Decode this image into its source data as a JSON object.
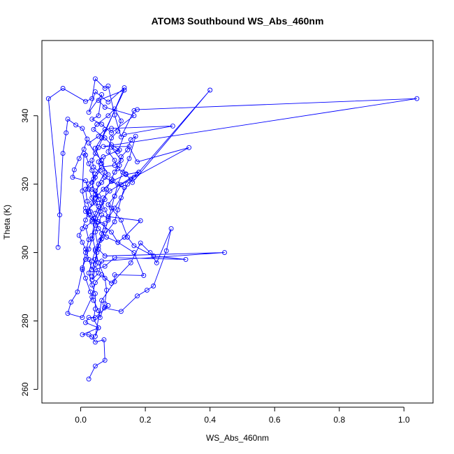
{
  "chart_data": {
    "type": "line",
    "title": "ATOM3 Southbound WS_Abs_460nm",
    "xlabel": "WS_Abs_460nm",
    "ylabel": "Theta (K)",
    "xlim": [
      -0.12,
      1.09
    ],
    "ylim": [
      256,
      362
    ],
    "xticks": [
      0.0,
      0.2,
      0.4,
      0.6,
      0.8,
      1.0
    ],
    "xtick_labels": [
      "0.0",
      "0.2",
      "0.4",
      "0.6",
      "0.8",
      "1.0"
    ],
    "yticks": [
      260,
      280,
      300,
      320,
      340
    ],
    "ytick_labels": [
      "260",
      "280",
      "300",
      "320",
      "340"
    ],
    "grid": false,
    "markers": "open-circle",
    "series": [
      {
        "color": "#0000ff",
        "points": [
          [
            0.025,
            263
          ],
          [
            0.045,
            266.8
          ],
          [
            0.075,
            268.5
          ],
          [
            0.072,
            274.5
          ],
          [
            0.045,
            273.8
          ],
          [
            0.035,
            275.3
          ],
          [
            0.025,
            276
          ],
          [
            0.005,
            276
          ],
          [
            0.055,
            278
          ],
          [
            0.015,
            279.5
          ],
          [
            0.025,
            281
          ],
          [
            0.045,
            281
          ],
          [
            0.085,
            284.5
          ],
          [
            0.073,
            283.8
          ],
          [
            0.125,
            282.8
          ],
          [
            0.175,
            287.3
          ],
          [
            0.205,
            289
          ],
          [
            0.225,
            290.2
          ],
          [
            0.265,
            300.5
          ],
          [
            0.28,
            307
          ],
          [
            0.235,
            297
          ],
          [
            0.215,
            300
          ],
          [
            0.185,
            302.8
          ],
          [
            0.155,
            297
          ],
          [
            0.095,
            291
          ],
          [
            0.065,
            293.5
          ],
          [
            0.045,
            291.2
          ],
          [
            0.035,
            287
          ],
          [
            0.005,
            281
          ],
          [
            -0.04,
            282.2
          ],
          [
            -0.03,
            285.5
          ],
          [
            -0.01,
            288.5
          ],
          [
            0.005,
            295
          ],
          [
            0.015,
            300
          ],
          [
            0.025,
            303.8
          ],
          [
            0.015,
            307.5
          ],
          [
            0.035,
            309
          ],
          [
            0.045,
            311.5
          ],
          [
            0.055,
            313.5
          ],
          [
            0.035,
            316
          ],
          [
            0.025,
            318.5
          ],
          [
            0.015,
            321
          ],
          [
            -0.025,
            322
          ],
          [
            -0.02,
            324.2
          ],
          [
            -0.005,
            327.5
          ],
          [
            0.01,
            330.2
          ],
          [
            0.02,
            333.2
          ],
          [
            0.005,
            336.3
          ],
          [
            -0.015,
            337.3
          ],
          [
            -0.04,
            339
          ],
          [
            -0.045,
            335
          ],
          [
            -0.055,
            329
          ],
          [
            -0.07,
            301.5
          ],
          [
            -0.065,
            311
          ],
          [
            -0.1,
            345
          ],
          [
            -0.055,
            348
          ],
          [
            0.015,
            344.2
          ],
          [
            0.035,
            345
          ],
          [
            0.045,
            350.8
          ],
          [
            0.075,
            348
          ],
          [
            0.085,
            348.7
          ],
          [
            0.105,
            340.2
          ],
          [
            0.125,
            333.8
          ],
          [
            0.165,
            341.5
          ],
          [
            0.175,
            341.8
          ],
          [
            1.04,
            345
          ],
          [
            0.07,
            331
          ],
          [
            0.15,
            331
          ],
          [
            0.175,
            326.5
          ],
          [
            0.335,
            330.7
          ],
          [
            0.155,
            321.5
          ],
          [
            0.125,
            319.8
          ],
          [
            0.105,
            316.5
          ],
          [
            0.085,
            314
          ],
          [
            0.125,
            309.5
          ],
          [
            0.145,
            304.5
          ],
          [
            0.165,
            302
          ],
          [
            0.225,
            299
          ],
          [
            0.325,
            298
          ],
          [
            0.105,
            298.5
          ],
          [
            0.075,
            296
          ],
          [
            0.045,
            295
          ],
          [
            0.035,
            292
          ],
          [
            0.055,
            294
          ],
          [
            0.065,
            297.5
          ],
          [
            0.445,
            300
          ],
          [
            0.075,
            299
          ],
          [
            0.055,
            301
          ],
          [
            0.045,
            306
          ],
          [
            0.065,
            311
          ],
          [
            0.085,
            310
          ],
          [
            0.105,
            313
          ],
          [
            0.125,
            316
          ],
          [
            0.145,
            320
          ],
          [
            0.165,
            322
          ],
          [
            0.18,
            323.5
          ],
          [
            0.14,
            322.8
          ],
          [
            0.1,
            321
          ],
          [
            0.07,
            318.5
          ],
          [
            0.045,
            316
          ],
          [
            0.055,
            320
          ],
          [
            0.075,
            323.5
          ],
          [
            0.065,
            327
          ],
          [
            0.045,
            329
          ],
          [
            0.025,
            332
          ],
          [
            0.055,
            334
          ],
          [
            0.075,
            336
          ],
          [
            0.095,
            336.3
          ],
          [
            0.285,
            337
          ],
          [
            0.135,
            334.5
          ],
          [
            0.115,
            329.5
          ],
          [
            0.095,
            330.8
          ],
          [
            0.125,
            327
          ],
          [
            0.105,
            325.5
          ],
          [
            0.065,
            325
          ],
          [
            0.045,
            323
          ],
          [
            0.035,
            320.5
          ],
          [
            0.045,
            317
          ],
          [
            0.035,
            314.5
          ],
          [
            0.025,
            312
          ],
          [
            0.015,
            309.5
          ],
          [
            0.005,
            307
          ],
          [
            -0.005,
            305
          ],
          [
            0.005,
            303
          ],
          [
            0.015,
            301
          ],
          [
            0.025,
            298
          ],
          [
            0.035,
            295
          ],
          [
            0.045,
            298
          ],
          [
            0.055,
            302
          ],
          [
            0.065,
            305.5
          ],
          [
            0.075,
            308.5
          ],
          [
            0.035,
            309.5
          ],
          [
            0.015,
            312
          ],
          [
            0.045,
            314.5
          ],
          [
            0.055,
            316.5
          ],
          [
            0.035,
            318.5
          ],
          [
            0.04,
            321.5
          ],
          [
            0.035,
            324
          ],
          [
            0.025,
            326
          ],
          [
            0.015,
            328.5
          ],
          [
            0.01,
            329
          ],
          [
            0.005,
            318
          ],
          [
            0.015,
            313
          ],
          [
            0.025,
            311
          ],
          [
            0.055,
            309
          ],
          [
            0.095,
            306
          ],
          [
            0.115,
            303
          ],
          [
            0.135,
            304.5
          ],
          [
            0.185,
            309.3
          ],
          [
            0.085,
            310.5
          ],
          [
            0.075,
            312.5
          ],
          [
            0.065,
            314.5
          ],
          [
            0.055,
            315.5
          ],
          [
            0.045,
            318
          ],
          [
            0.065,
            320.5
          ],
          [
            0.085,
            322.8
          ],
          [
            0.065,
            326
          ],
          [
            0.045,
            330.5
          ],
          [
            0.065,
            333.5
          ],
          [
            0.135,
            347.5
          ],
          [
            0.055,
            344.5
          ],
          [
            0.075,
            342.5
          ],
          [
            0.165,
            340
          ],
          [
            0.095,
            335
          ],
          [
            0.065,
            337.5
          ],
          [
            0.035,
            339
          ],
          [
            0.055,
            340
          ],
          [
            0.065,
            346.2
          ],
          [
            0.025,
            341
          ],
          [
            0.045,
            347
          ],
          [
            0.085,
            344
          ],
          [
            0.135,
            348.2
          ],
          [
            0.055,
            330.7
          ],
          [
            0.035,
            327
          ],
          [
            0.04,
            325
          ],
          [
            0.075,
            322
          ],
          [
            0.095,
            320.8
          ],
          [
            0.135,
            319
          ],
          [
            0.115,
            312.5
          ],
          [
            0.105,
            309
          ],
          [
            0.065,
            304
          ],
          [
            0.045,
            300.5
          ],
          [
            0.035,
            297.5
          ],
          [
            0.025,
            294
          ],
          [
            0.035,
            290.5
          ],
          [
            0.045,
            288
          ],
          [
            0.045,
            283.5
          ],
          [
            0.04,
            280.5
          ],
          [
            0.055,
            278
          ],
          [
            0.045,
            275.5
          ],
          [
            0.065,
            286
          ],
          [
            0.105,
            291.5
          ],
          [
            0.105,
            293.5
          ],
          [
            0.195,
            293.3
          ],
          [
            0.165,
            300
          ],
          [
            0.115,
            303
          ],
          [
            0.08,
            304.5
          ],
          [
            0.055,
            307
          ],
          [
            0.04,
            310
          ],
          [
            0.03,
            312
          ],
          [
            0.02,
            315
          ],
          [
            0.015,
            318.5
          ],
          [
            0.025,
            320
          ],
          [
            0.045,
            322
          ],
          [
            0.06,
            324
          ],
          [
            0.055,
            326.5
          ],
          [
            0.07,
            328
          ],
          [
            0.12,
            330
          ],
          [
            0.095,
            331.5
          ],
          [
            0.075,
            333.5
          ],
          [
            0.04,
            336
          ],
          [
            0.05,
            337.5
          ],
          [
            0.085,
            340
          ],
          [
            0.105,
            342
          ],
          [
            0.125,
            338.5
          ],
          [
            0.115,
            335.5
          ],
          [
            0.095,
            333.5
          ],
          [
            0.085,
            329.5
          ],
          [
            0.105,
            327
          ],
          [
            0.115,
            324.5
          ],
          [
            0.14,
            323
          ],
          [
            0.16,
            320.5
          ],
          [
            0.4,
            347.5
          ],
          [
            0.175,
            323
          ],
          [
            0.09,
            318
          ],
          [
            0.07,
            316
          ],
          [
            0.06,
            312
          ],
          [
            0.045,
            308
          ],
          [
            0.035,
            304
          ],
          [
            0.025,
            301
          ],
          [
            0.015,
            298
          ],
          [
            0.005,
            295.5
          ],
          [
            0.015,
            292.5
          ],
          [
            0.03,
            288.5
          ],
          [
            0.04,
            286
          ],
          [
            0.055,
            283
          ],
          [
            0.06,
            281
          ],
          [
            0.075,
            285
          ],
          [
            0.08,
            289
          ],
          [
            0.075,
            292.5
          ],
          [
            0.055,
            297
          ],
          [
            0.045,
            301
          ],
          [
            0.035,
            305
          ],
          [
            0.045,
            310
          ],
          [
            0.06,
            313
          ],
          [
            0.075,
            315.5
          ],
          [
            0.08,
            318.5
          ],
          [
            0.095,
            321.5
          ],
          [
            0.105,
            323.5
          ],
          [
            0.12,
            325.5
          ],
          [
            0.125,
            328
          ],
          [
            0.145,
            330
          ],
          [
            0.155,
            333
          ],
          [
            0.17,
            334
          ],
          [
            0.15,
            327.5
          ],
          [
            0.13,
            323.5
          ],
          [
            0.115,
            320
          ],
          [
            0.105,
            316.5
          ],
          [
            0.095,
            313
          ],
          [
            0.085,
            309.5
          ],
          [
            0.075,
            306.5
          ],
          [
            0.06,
            303.5
          ],
          [
            0.05,
            300
          ],
          [
            0.045,
            296.5
          ],
          [
            0.035,
            293
          ]
        ]
      }
    ]
  }
}
